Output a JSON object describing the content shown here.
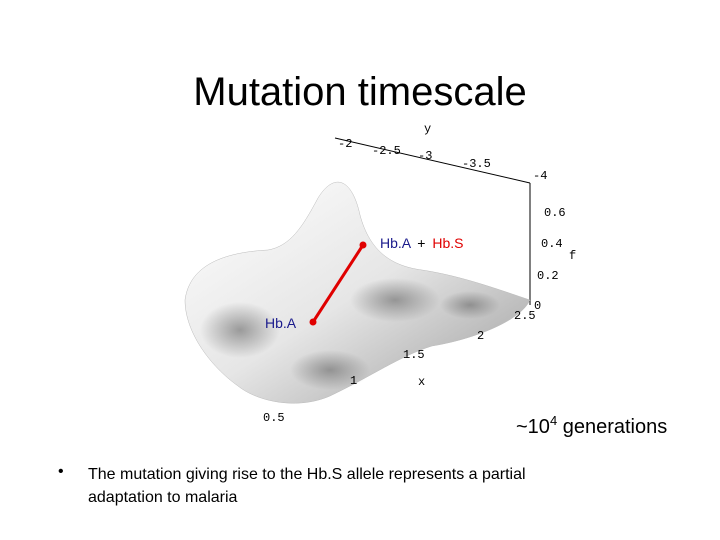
{
  "title": "Mutation timescale",
  "plot": {
    "y_axis": {
      "label": "y",
      "ticks": [
        "-2",
        "-2.5",
        "-3",
        "-3.5",
        "-4"
      ]
    },
    "f_axis": {
      "label": "f",
      "ticks": [
        "0.6",
        "0.4",
        "0.2",
        "0"
      ]
    },
    "x_axis": {
      "label": "x",
      "ticks": [
        "2.5",
        "2",
        "1.5",
        "1",
        "0.5"
      ]
    },
    "annotations": {
      "upper": {
        "left": "Hb.A",
        "plus": "+",
        "right": "Hb.S"
      },
      "lower": "Hb.A"
    }
  },
  "generations": {
    "prefix": "~10",
    "exponent": "4",
    "suffix": " generations"
  },
  "bullets": [
    "The mutation giving rise to the Hb.S allele represents a partial adaptation to malaria"
  ]
}
